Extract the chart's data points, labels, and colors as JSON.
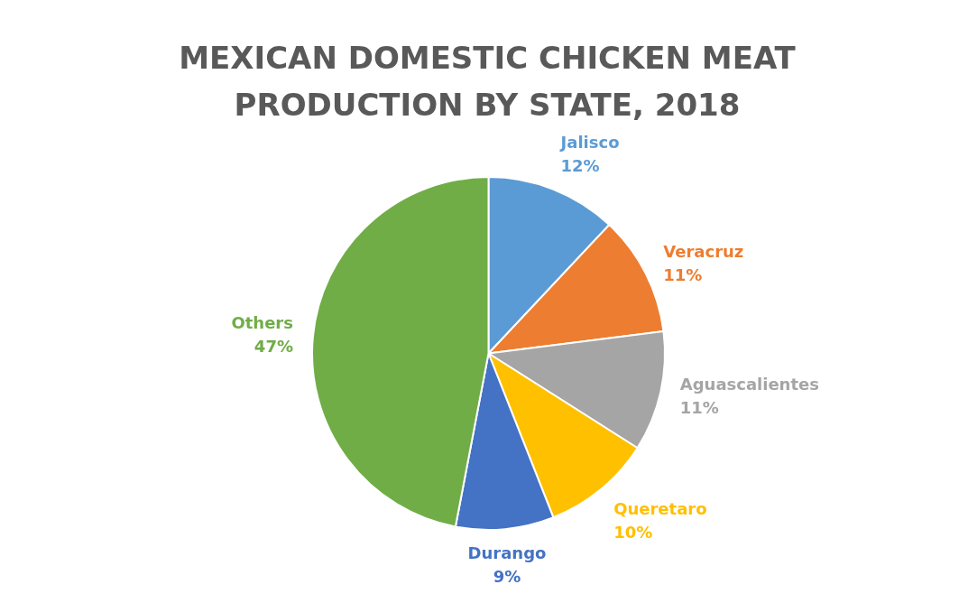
{
  "chart_data": {
    "type": "pie",
    "title": "MEXICAN DOMESTIC CHICKEN MEAT PRODUCTION BY STATE, 2018",
    "categories": [
      "Jalisco",
      "Veracruz",
      "Aguascalientes",
      "Queretaro",
      "Durango",
      "Others"
    ],
    "values": [
      12,
      11,
      11,
      10,
      9,
      47
    ],
    "value_labels": [
      "12%",
      "11%",
      "11%",
      "10%",
      "9%",
      "47%"
    ],
    "colors": [
      "#5b9bd5",
      "#ed7d31",
      "#a5a5a5",
      "#ffc000",
      "#4472c4",
      "#70ad47"
    ],
    "legend": false
  }
}
